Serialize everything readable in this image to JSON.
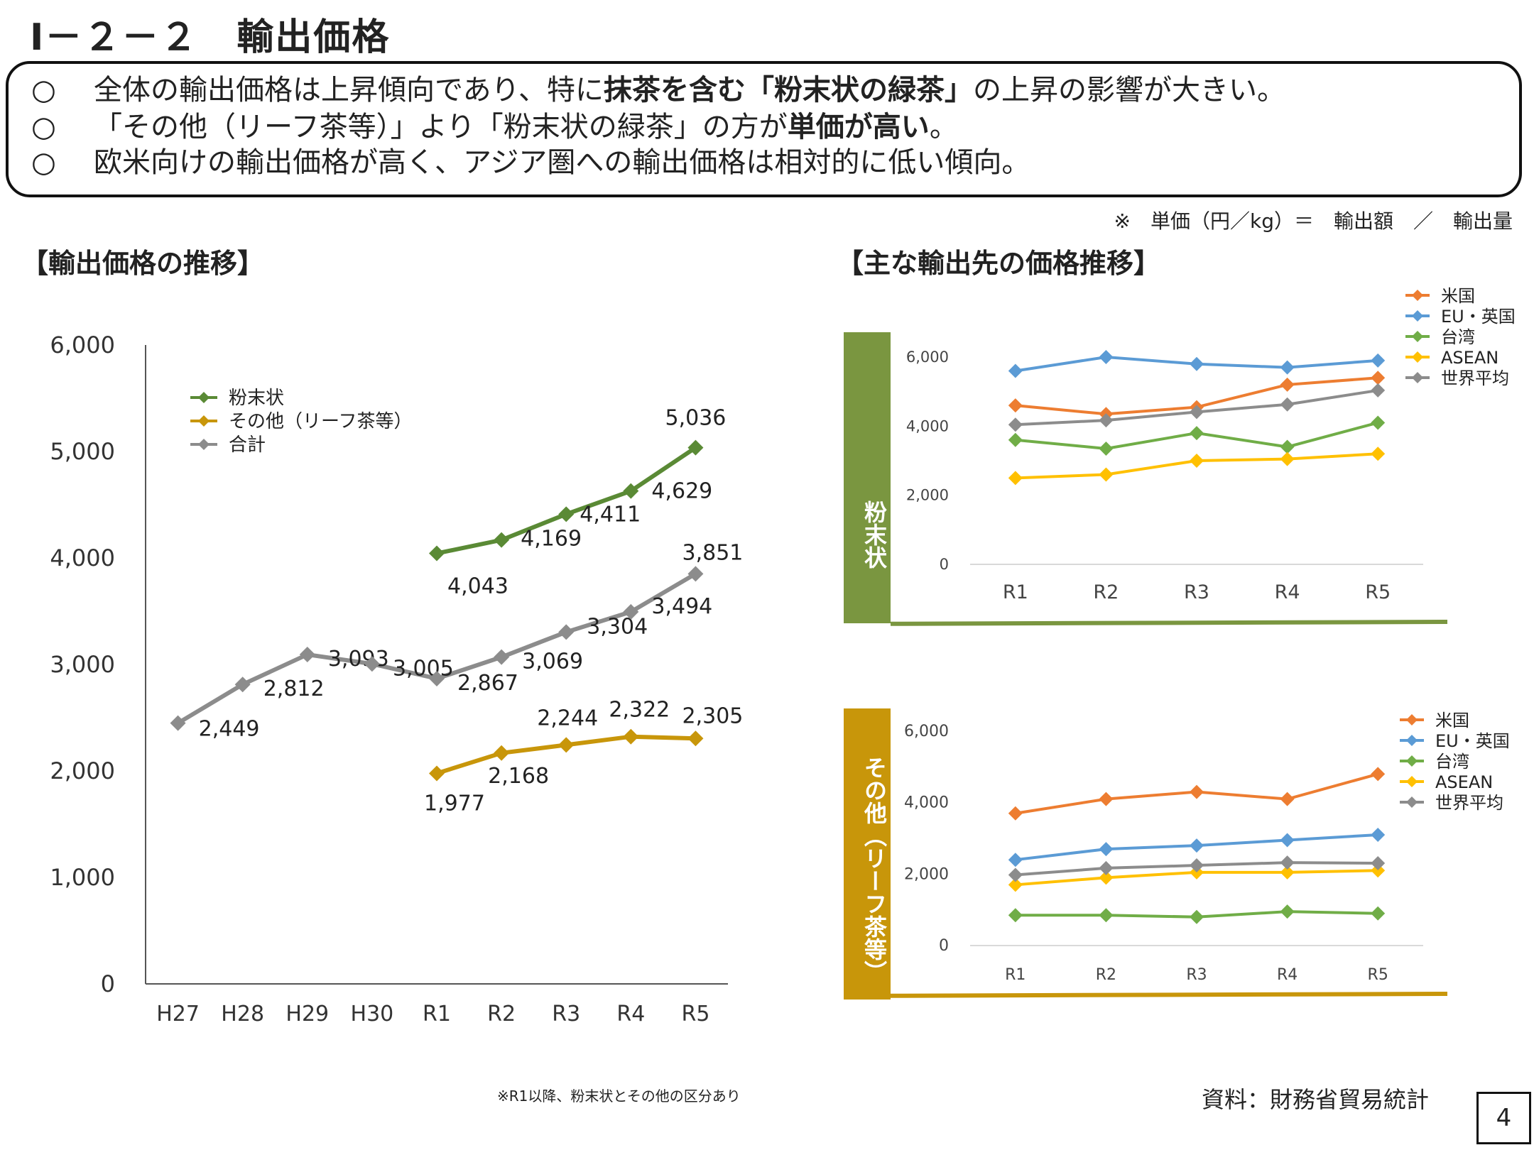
{
  "page": {
    "title": "Ⅰ－２－２　輸出価格",
    "unit_note": "※　単価（円／kg）＝　輸出額　／　輸出量",
    "footnote": "※R1以降、粉末状とその他の区分あり",
    "source": "資料：財務省貿易統計",
    "page_number": "4"
  },
  "summary": [
    {
      "mark": "○",
      "parts": [
        {
          "text": "全体の輸出価格は上昇傾向であり、特に",
          "bold": false
        },
        {
          "text": "抹茶を含む「粉末状の緑茶」",
          "bold": true
        },
        {
          "text": "の上昇の影響が大きい。",
          "bold": false
        }
      ]
    },
    {
      "mark": "○",
      "parts": [
        {
          "text": "「その他（リーフ茶等）」より「粉末状の緑茶」の方が",
          "bold": false
        },
        {
          "text": "単価が高い",
          "bold": true
        },
        {
          "text": "。",
          "bold": false
        }
      ]
    },
    {
      "mark": "○",
      "parts": [
        {
          "text": "欧米向けの輸出価格が高く、アジア圏への輸出価格は相対的に低い傾向。",
          "bold": false
        }
      ]
    }
  ],
  "left_section_title": "【輸出価格の推移】",
  "right_section_title": "【主な輸出先の価格推移】",
  "colors": {
    "powder": "#5a8a35",
    "other": "#c8960a",
    "total": "#8c8c8c",
    "us": "#ed7d31",
    "eu": "#5b9bd5",
    "taiwan": "#70ad47",
    "asean": "#ffc000",
    "world": "#8c8c8c",
    "panel_powder": "#7a9640",
    "panel_other": "#c8960a"
  },
  "chart_data": [
    {
      "type": "line",
      "categories": [
        "H27",
        "H28",
        "H29",
        "H30",
        "R1",
        "R2",
        "R3",
        "R4",
        "R5"
      ],
      "ylim": [
        0,
        6000
      ],
      "yticks": [
        "0",
        "1,000",
        "2,000",
        "3,000",
        "4,000",
        "5,000",
        "6,000"
      ],
      "legend": "top-left",
      "grid": false,
      "series": [
        {
          "name": "粉末状",
          "color_key": "powder",
          "values": [
            null,
            null,
            null,
            null,
            4043,
            4169,
            4411,
            4629,
            5036
          ],
          "labels": [
            null,
            null,
            null,
            null,
            "4,043",
            "4,169",
            "4,411",
            "4,629",
            "5,036"
          ]
        },
        {
          "name": "その他（リーフ茶等）",
          "color_key": "other",
          "values": [
            null,
            null,
            null,
            null,
            1977,
            2168,
            2244,
            2322,
            2305
          ],
          "labels": [
            null,
            null,
            null,
            null,
            "1,977",
            "2,168",
            "2,244",
            "2,322",
            "2,305"
          ]
        },
        {
          "name": "合計",
          "color_key": "total",
          "values": [
            2449,
            2812,
            3093,
            3005,
            2867,
            3069,
            3304,
            3494,
            3851
          ],
          "labels": [
            "2,449",
            "2,812",
            "3,093",
            "3,005",
            "2,867",
            "3,069",
            "3,304",
            "3,494",
            "3,851"
          ]
        }
      ]
    },
    {
      "type": "line",
      "side_label": "粉末状",
      "categories": [
        "R1",
        "R2",
        "R3",
        "R4",
        "R5"
      ],
      "ylim": [
        0,
        6000
      ],
      "yticks": [
        "0",
        "2,000",
        "4,000",
        "6,000"
      ],
      "legend": "top-right",
      "grid": false,
      "series": [
        {
          "name": "米国",
          "color_key": "us",
          "values": [
            4600,
            4350,
            4550,
            5200,
            5400
          ]
        },
        {
          "name": "EU・英国",
          "color_key": "eu",
          "values": [
            5600,
            6000,
            5800,
            5700,
            5900
          ]
        },
        {
          "name": "台湾",
          "color_key": "taiwan",
          "values": [
            3600,
            3350,
            3800,
            3400,
            4100
          ]
        },
        {
          "name": "ASEAN",
          "color_key": "asean",
          "values": [
            2500,
            2600,
            3000,
            3050,
            3200
          ]
        },
        {
          "name": "世界平均",
          "color_key": "world",
          "values": [
            4043,
            4169,
            4411,
            4629,
            5036
          ]
        }
      ]
    },
    {
      "type": "line",
      "side_label": "その他（リーフ茶等）",
      "categories": [
        "R1",
        "R2",
        "R3",
        "R4",
        "R5"
      ],
      "ylim": [
        0,
        6000
      ],
      "yticks": [
        "0",
        "2,000",
        "4,000",
        "6,000"
      ],
      "legend": "top-right",
      "grid": false,
      "series": [
        {
          "name": "米国",
          "color_key": "us",
          "values": [
            3700,
            4100,
            4300,
            4100,
            4800
          ]
        },
        {
          "name": "EU・英国",
          "color_key": "eu",
          "values": [
            2400,
            2700,
            2800,
            2950,
            3100
          ]
        },
        {
          "name": "台湾",
          "color_key": "taiwan",
          "values": [
            850,
            850,
            800,
            950,
            900
          ]
        },
        {
          "name": "ASEAN",
          "color_key": "asean",
          "values": [
            1700,
            1900,
            2050,
            2050,
            2100
          ]
        },
        {
          "name": "世界平均",
          "color_key": "world",
          "values": [
            1977,
            2168,
            2244,
            2322,
            2305
          ]
        }
      ]
    }
  ]
}
